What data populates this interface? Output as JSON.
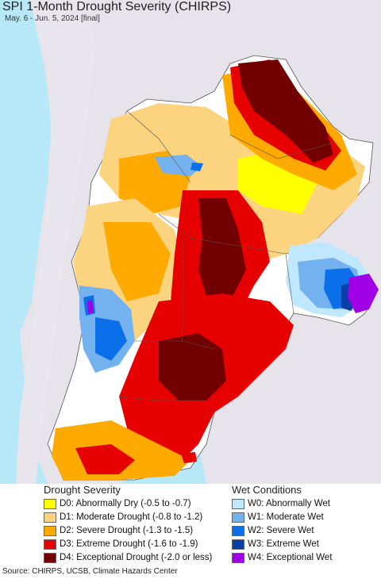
{
  "map": {
    "title": "SPI 1-Month Drought Severity (CHIRPS)",
    "subtitle": "May. 6 - Jun. 5, 2024 [final]",
    "colors": {
      "ocean": "#b7e8f7",
      "outside": "#e6e4ea",
      "land_base": "#ffffff",
      "border": "#555555"
    }
  },
  "legend": {
    "drought_heading": "Drought Severity",
    "wet_heading": "Wet Conditions",
    "drought": [
      {
        "label": "D0: Abnormally Dry (-0.5 to -0.7)",
        "color": "#ffff00"
      },
      {
        "label": "D1: Moderate Drought (-0.8 to -1.2)",
        "color": "#fcd37f"
      },
      {
        "label": "D2: Severe Drought (-1.3 to -1.5)",
        "color": "#ffaa00"
      },
      {
        "label": "D3: Extreme Drought (-1.6 to -1.9)",
        "color": "#e60000"
      },
      {
        "label": "D4: Exceptional Drought (-2.0 or less)",
        "color": "#730000"
      }
    ],
    "wet": [
      {
        "label": "W0: Abnormally Wet",
        "color": "#bfe8ff"
      },
      {
        "label": "W1: Moderate Wet",
        "color": "#74b1ef"
      },
      {
        "label": "W2: Severe Wet",
        "color": "#0a6fe8"
      },
      {
        "label": "W3: Extreme Wet",
        "color": "#0b3fa8"
      },
      {
        "label": "W4: Exceptional Wet",
        "color": "#a000e6"
      }
    ]
  },
  "source": "Source: CHIRPS, UCSB, Climate Hazards Center"
}
